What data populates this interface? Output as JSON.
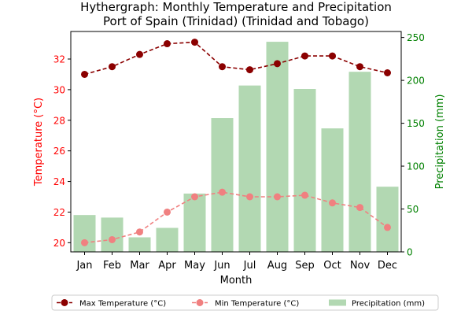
{
  "chart_data": {
    "type": "bar+line",
    "title_line1": "Hythergraph: Monthly Temperature and Precipitation",
    "title_line2": "Port of Spain (Trinidad) (Trinidad and Tobago)",
    "xlabel": "Month",
    "ylabel_left": "Temperature (°C)",
    "ylabel_right": "Precipitation (mm)",
    "categories": [
      "Jan",
      "Feb",
      "Mar",
      "Apr",
      "May",
      "Jun",
      "Jul",
      "Aug",
      "Sep",
      "Oct",
      "Nov",
      "Dec"
    ],
    "temp_ylim": [
      19.4,
      33.8
    ],
    "temp_ticks": [
      20,
      22,
      24,
      26,
      28,
      30,
      32
    ],
    "precip_ylim": [
      0,
      257
    ],
    "precip_ticks": [
      0,
      50,
      100,
      150,
      200,
      250
    ],
    "grid": false,
    "legend_position": "bottom-center",
    "series": [
      {
        "name": "Max Temperature (°C)",
        "kind": "line",
        "axis": "left",
        "color": "#8b0000",
        "values": [
          31.0,
          31.5,
          32.3,
          33.0,
          33.1,
          31.5,
          31.3,
          31.7,
          32.2,
          32.2,
          31.5,
          31.1
        ]
      },
      {
        "name": "Min Temperature (°C)",
        "kind": "line",
        "axis": "left",
        "color": "#f08080",
        "values": [
          20.0,
          20.2,
          20.7,
          22.0,
          23.0,
          23.3,
          23.0,
          23.0,
          23.1,
          22.6,
          22.3,
          21.0
        ]
      },
      {
        "name": "Precipitation (mm)",
        "kind": "bar",
        "axis": "right",
        "color": "#b2d8b2",
        "values": [
          43,
          40,
          17,
          28,
          68,
          156,
          194,
          245,
          190,
          144,
          210,
          76
        ]
      }
    ],
    "colors": {
      "left_axis": "#ff0000",
      "right_axis": "#008000",
      "axis_line": "#000000"
    }
  }
}
